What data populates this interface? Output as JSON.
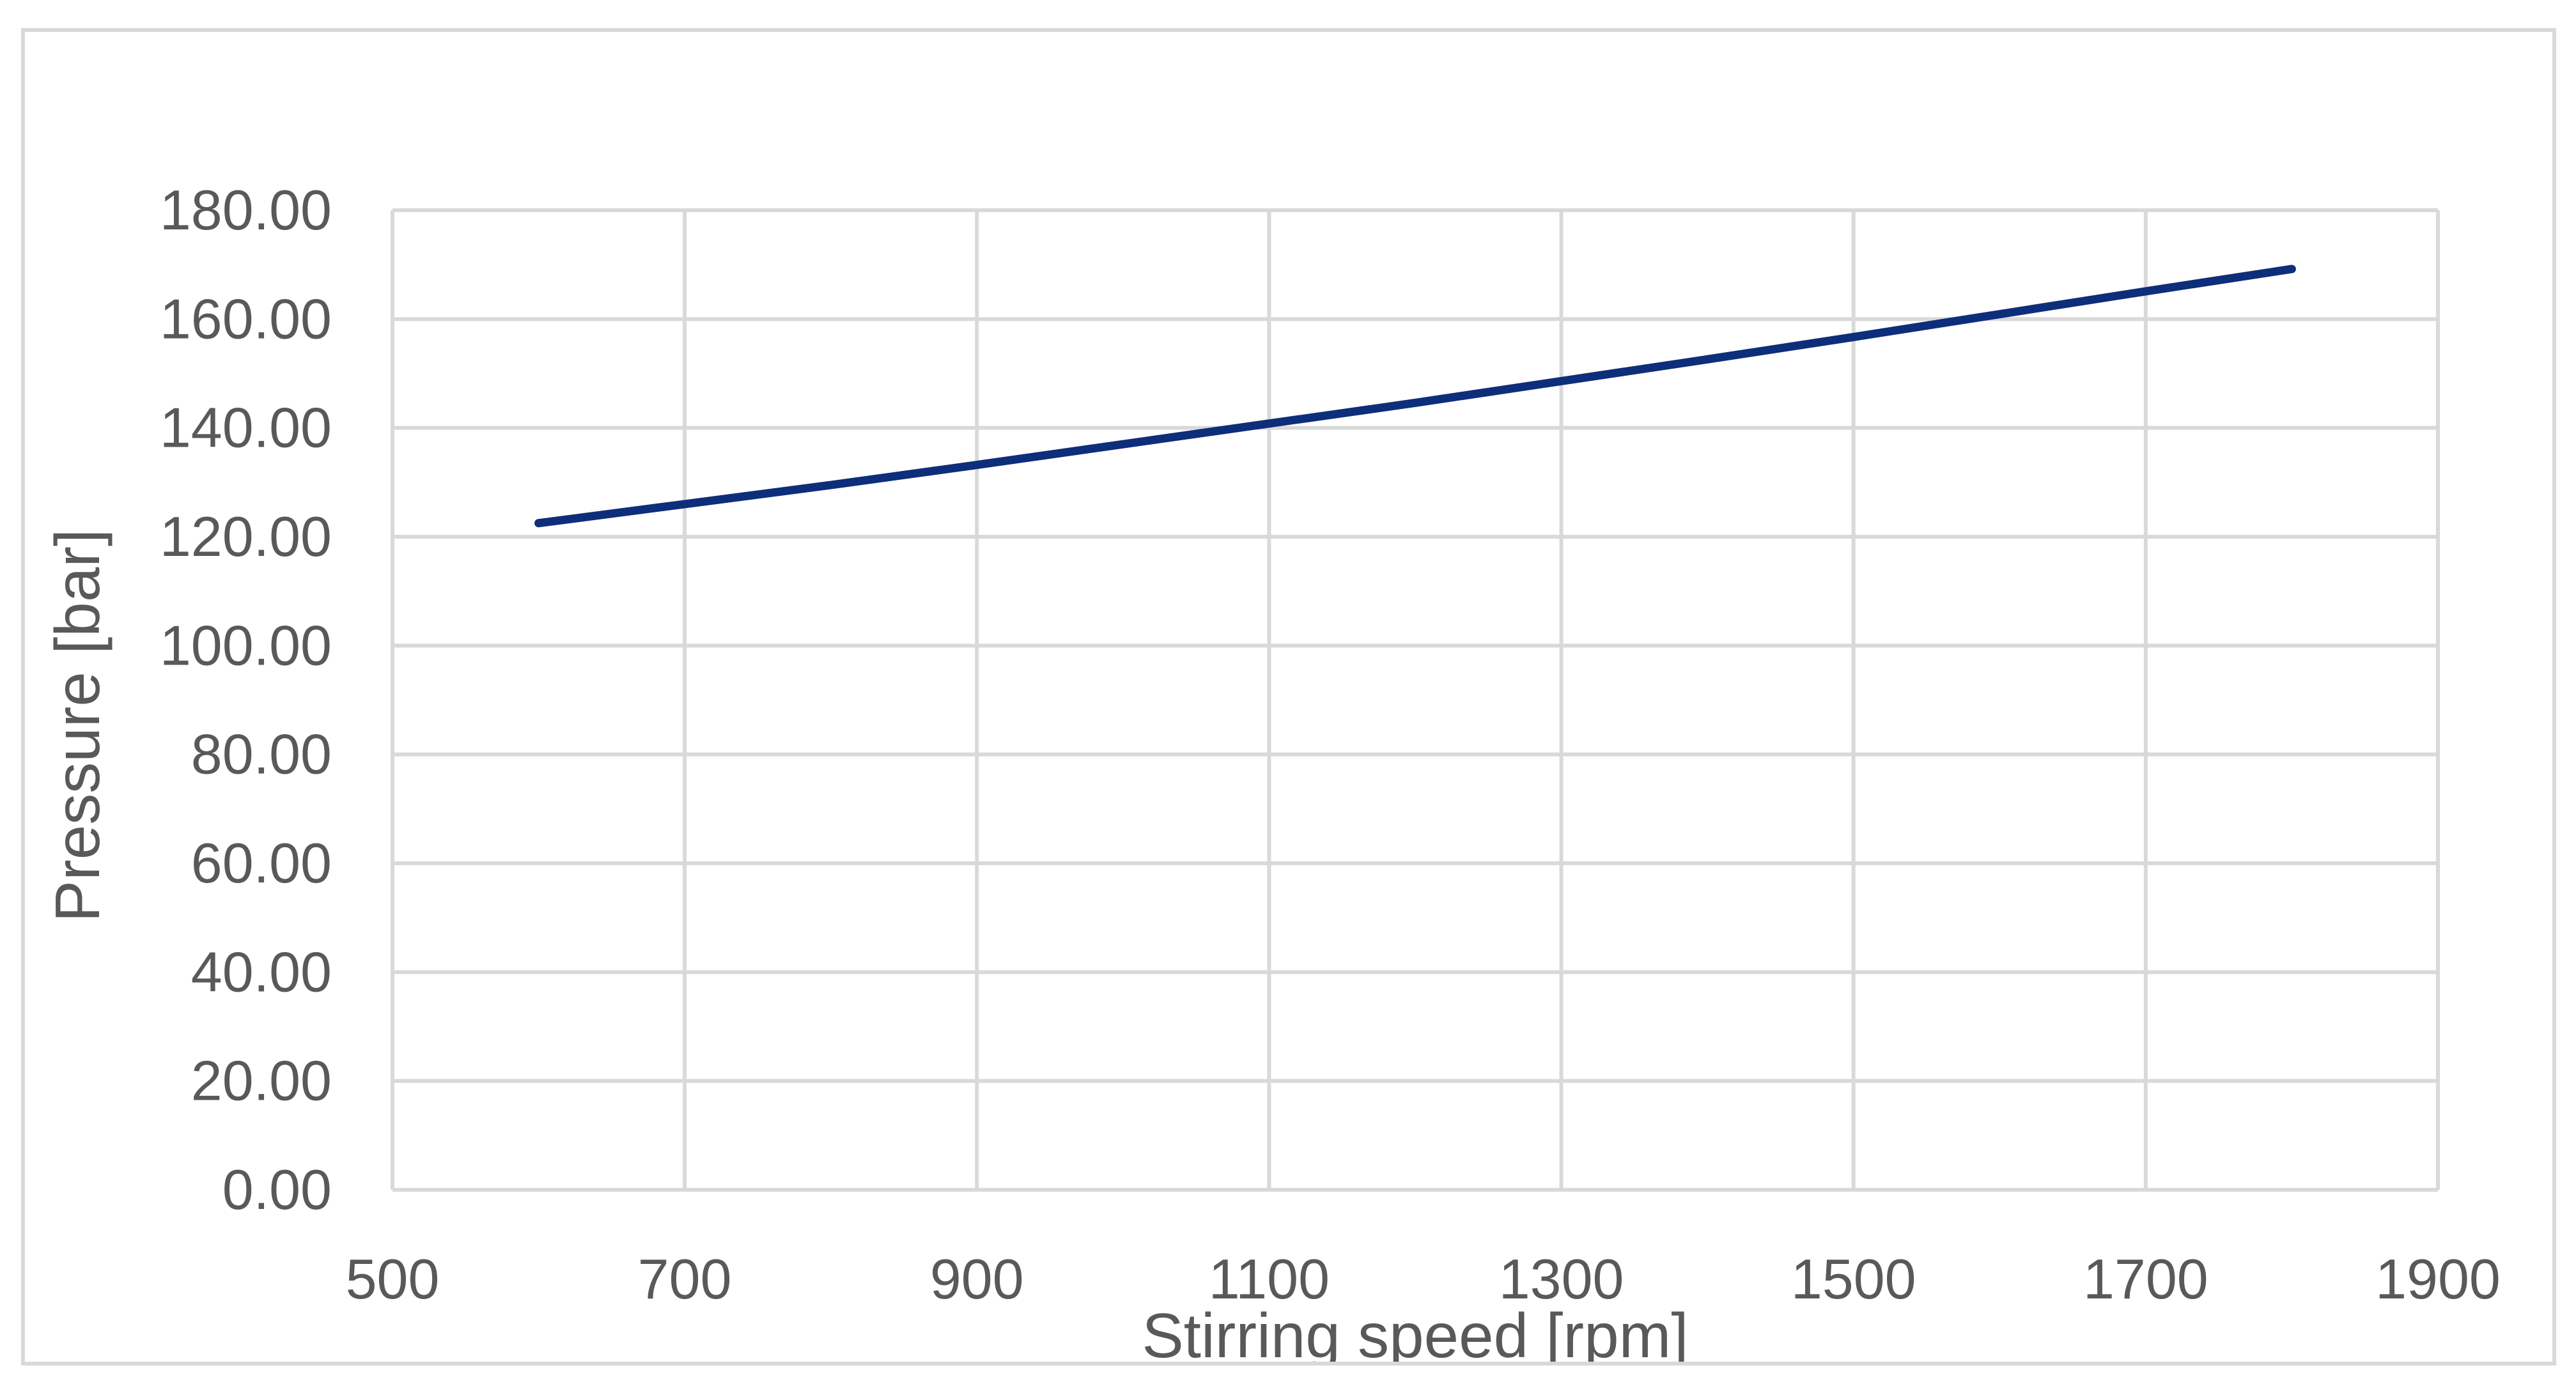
{
  "chart_data": {
    "type": "line",
    "title": "",
    "xlabel": "Stirring speed [rpm]",
    "ylabel": "Pressure [bar]",
    "xlim": [
      500,
      1900
    ],
    "ylim": [
      0,
      180
    ],
    "x_ticks": [
      500,
      700,
      900,
      1100,
      1300,
      1500,
      1700,
      1900
    ],
    "x_tick_labels": [
      "500",
      "700",
      "900",
      "1100",
      "1300",
      "1500",
      "1700",
      "1900"
    ],
    "y_ticks": [
      0,
      20,
      40,
      60,
      80,
      100,
      120,
      140,
      160,
      180
    ],
    "y_tick_labels": [
      "0.00",
      "20.00",
      "40.00",
      "60.00",
      "80.00",
      "100.00",
      "120.00",
      "140.00",
      "160.00",
      "180.00"
    ],
    "grid": true,
    "legend": "none",
    "series": [
      {
        "color": "#0d2e7a",
        "x": [
          600,
          700,
          800,
          900,
          1000,
          1100,
          1200,
          1300,
          1400,
          1500,
          1600,
          1700,
          1800
        ],
        "y": [
          122.5,
          126.0,
          129.5,
          133.2,
          137.0,
          140.8,
          144.6,
          148.6,
          152.6,
          156.7,
          160.9,
          165.1,
          169.2
        ]
      }
    ]
  }
}
